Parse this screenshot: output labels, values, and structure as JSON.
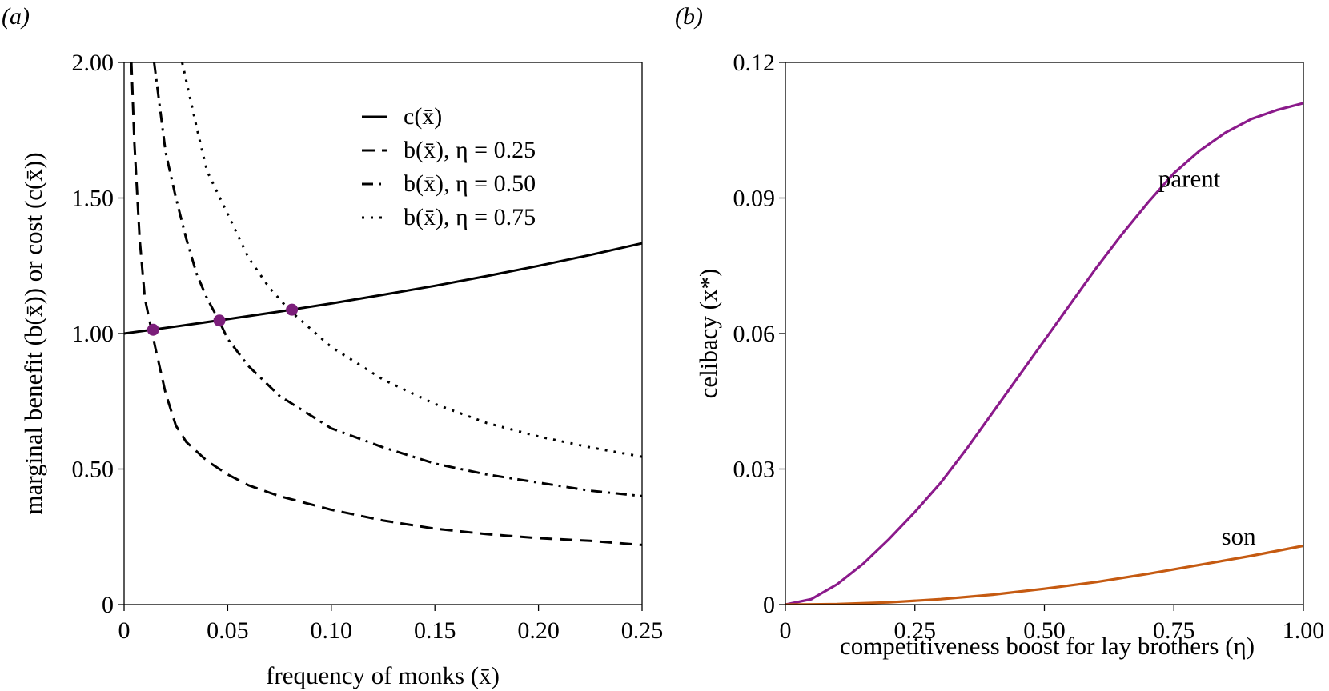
{
  "chart_data": [
    {
      "panel_label": "(a)",
      "type": "line",
      "xlabel": "frequency of monks (x̄)",
      "ylabel": "marginal benefit (b(x̄)) or cost (c(x̄))",
      "xlim": [
        0,
        0.25
      ],
      "ylim": [
        0,
        2.0
      ],
      "xticks": [
        0,
        0.05,
        0.1,
        0.15,
        0.2,
        0.25
      ],
      "xtick_labels": [
        "0",
        "0.05",
        "0.10",
        "0.15",
        "0.20",
        "0.25"
      ],
      "yticks": [
        0,
        0.5,
        1.0,
        1.5,
        2.0
      ],
      "ytick_labels": [
        "0",
        "0.50",
        "1.00",
        "1.50",
        "2.00"
      ],
      "grid": false,
      "legend_position": "top-right",
      "series": [
        {
          "name": "c(x̄)",
          "style": "solid",
          "color": "#000000",
          "x": [
            0,
            0.025,
            0.05,
            0.075,
            0.1,
            0.125,
            0.15,
            0.175,
            0.2,
            0.225,
            0.25
          ],
          "y": [
            1.0,
            1.026,
            1.053,
            1.081,
            1.111,
            1.143,
            1.176,
            1.212,
            1.25,
            1.29,
            1.333
          ]
        },
        {
          "name": "b(x̄), η = 0.25",
          "style": "dashed",
          "color": "#000000",
          "x": [
            0.0035,
            0.005,
            0.0075,
            0.01,
            0.0125,
            0.015,
            0.02,
            0.025,
            0.03,
            0.04,
            0.05,
            0.06,
            0.075,
            0.1,
            0.125,
            0.15,
            0.175,
            0.2,
            0.225,
            0.25
          ],
          "y": [
            2.0,
            1.7,
            1.35,
            1.13,
            1.04,
            0.95,
            0.78,
            0.66,
            0.6,
            0.53,
            0.48,
            0.44,
            0.4,
            0.35,
            0.31,
            0.28,
            0.26,
            0.245,
            0.235,
            0.22
          ]
        },
        {
          "name": "b(x̄), η = 0.50",
          "style": "dashdot",
          "color": "#000000",
          "x": [
            0.0145,
            0.02,
            0.025,
            0.03,
            0.035,
            0.04,
            0.046,
            0.05,
            0.06,
            0.075,
            0.1,
            0.125,
            0.15,
            0.175,
            0.2,
            0.225,
            0.25
          ],
          "y": [
            2.0,
            1.67,
            1.5,
            1.35,
            1.22,
            1.13,
            1.045,
            0.98,
            0.88,
            0.77,
            0.65,
            0.58,
            0.52,
            0.48,
            0.45,
            0.42,
            0.4
          ]
        },
        {
          "name": "b(x̄), η = 0.75",
          "style": "dotted",
          "color": "#000000",
          "x": [
            0.028,
            0.035,
            0.04,
            0.05,
            0.06,
            0.07,
            0.08,
            0.1,
            0.125,
            0.15,
            0.175,
            0.2,
            0.225,
            0.25
          ],
          "y": [
            2.0,
            1.76,
            1.6,
            1.44,
            1.28,
            1.17,
            1.085,
            0.95,
            0.83,
            0.74,
            0.67,
            0.62,
            0.58,
            0.545
          ]
        }
      ],
      "points": {
        "color": "#7b1e7a",
        "x": [
          0.014,
          0.046,
          0.081
        ],
        "y": [
          1.014,
          1.048,
          1.088
        ]
      }
    },
    {
      "panel_label": "(b)",
      "type": "line",
      "xlabel": "competitiveness boost for lay brothers (η)",
      "ylabel": "celibacy (x*)",
      "xlim": [
        0,
        1.0
      ],
      "ylim": [
        0,
        0.12
      ],
      "xticks": [
        0,
        0.25,
        0.5,
        0.75,
        1.0
      ],
      "xtick_labels": [
        "0",
        "0.25",
        "0.50",
        "0.75",
        "1.00"
      ],
      "yticks": [
        0,
        0.03,
        0.06,
        0.09,
        0.12
      ],
      "ytick_labels": [
        "0",
        "0.03",
        "0.06",
        "0.09",
        "0.12"
      ],
      "grid": false,
      "series": [
        {
          "name": "parent",
          "color": "#8b1a8b",
          "x": [
            0,
            0.05,
            0.1,
            0.15,
            0.2,
            0.25,
            0.3,
            0.35,
            0.4,
            0.45,
            0.5,
            0.55,
            0.6,
            0.65,
            0.7,
            0.75,
            0.8,
            0.85,
            0.9,
            0.95,
            1.0
          ],
          "y": [
            0,
            0.0012,
            0.0045,
            0.009,
            0.0145,
            0.0205,
            0.027,
            0.0345,
            0.0425,
            0.0505,
            0.0585,
            0.0665,
            0.0745,
            0.082,
            0.089,
            0.0955,
            0.1005,
            0.1045,
            0.1075,
            0.1095,
            0.111
          ]
        },
        {
          "name": "son",
          "color": "#c55a11",
          "x": [
            0,
            0.1,
            0.2,
            0.3,
            0.4,
            0.5,
            0.6,
            0.7,
            0.8,
            0.9,
            1.0
          ],
          "y": [
            0,
            0.0001,
            0.0005,
            0.0012,
            0.0022,
            0.0035,
            0.005,
            0.0068,
            0.0088,
            0.0108,
            0.013
          ]
        }
      ]
    }
  ]
}
